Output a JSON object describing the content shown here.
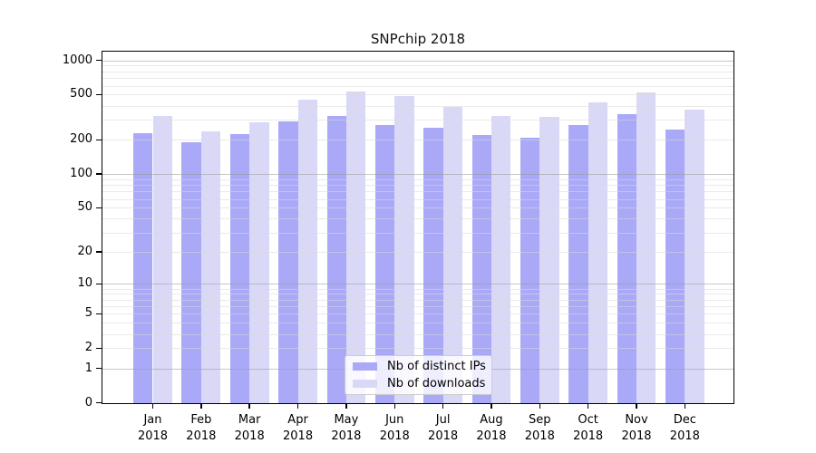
{
  "chart_data": {
    "type": "bar",
    "title": "SNPchip 2018",
    "categories": [
      "Jan",
      "Feb",
      "Mar",
      "Apr",
      "May",
      "Jun",
      "Jul",
      "Aug",
      "Sep",
      "Oct",
      "Nov",
      "Dec"
    ],
    "category_year": "2018",
    "series": [
      {
        "name": "Nb of distinct IPs",
        "color": "#a9a9f7",
        "values": [
          230,
          190,
          225,
          290,
          325,
          270,
          255,
          223,
          210,
          270,
          335,
          245
        ]
      },
      {
        "name": "Nb of downloads",
        "color": "#d9d9f7",
        "values": [
          325,
          240,
          285,
          450,
          535,
          485,
          390,
          325,
          320,
          430,
          525,
          370
        ]
      }
    ],
    "yscale": "log1p",
    "ytick_values": [
      0,
      1,
      2,
      5,
      10,
      20,
      50,
      100,
      200,
      500,
      1000
    ],
    "ylim": [
      0,
      1200
    ],
    "grid": "horizontal, major at powers of 10, minor at 2-9 multiples",
    "legend_position": "inside bottom-center"
  },
  "colors": {
    "background": "#ffffff",
    "axis": "#000000",
    "major_grid": "#999999",
    "minor_grid": "#d9d9d9",
    "legend_border": "#cccccc"
  }
}
